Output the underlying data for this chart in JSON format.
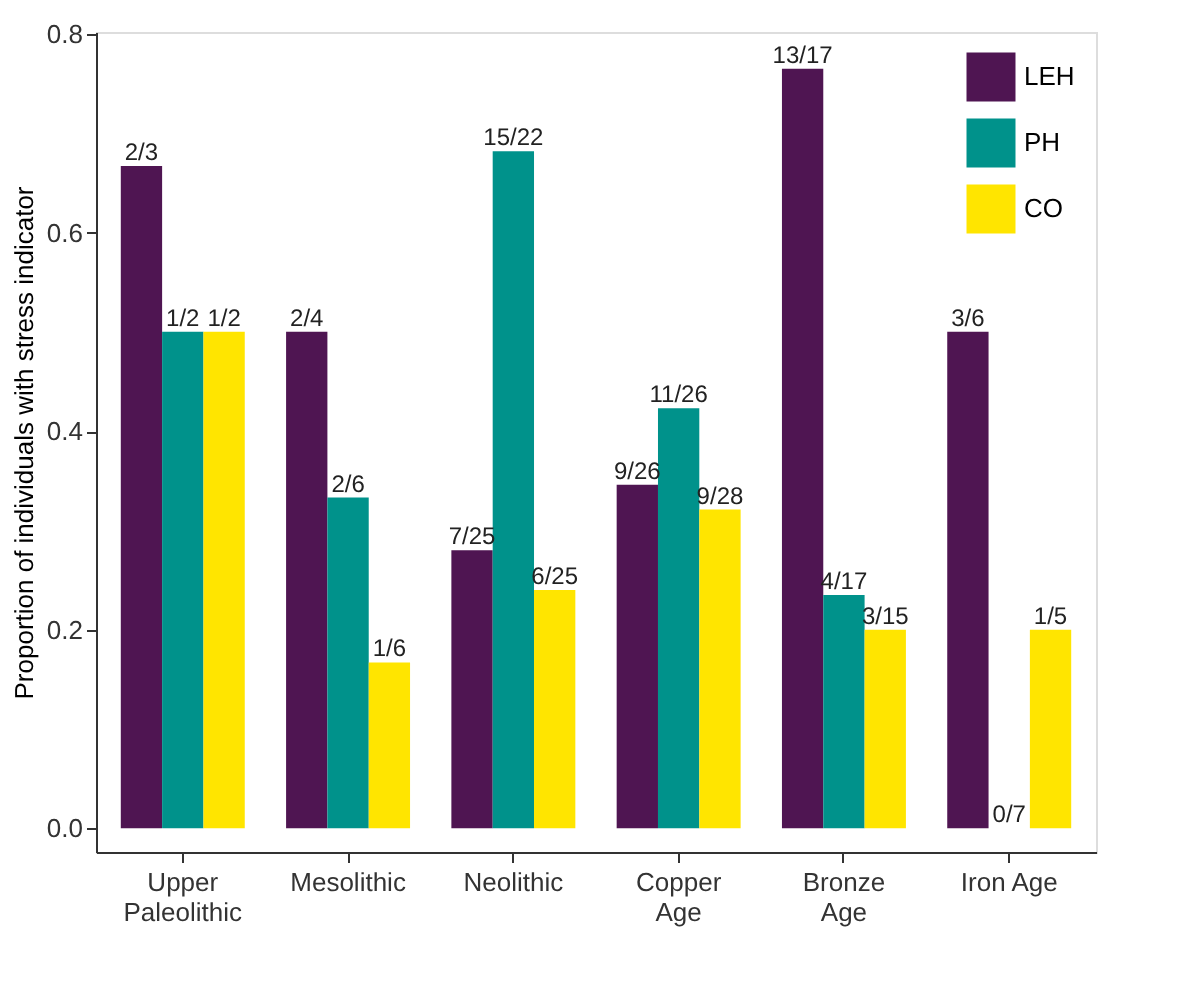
{
  "chart_data": {
    "type": "bar",
    "ylabel": "Proportion of individuals with stress indicator",
    "categories": [
      "Upper\nPaleolithic",
      "Mesolithic",
      "Neolithic",
      "Copper\nAge",
      "Bronze\nAge",
      "Iron Age"
    ],
    "series": [
      {
        "name": "LEH",
        "color": "#4f1552",
        "values": [
          0.667,
          0.5,
          0.28,
          0.346,
          0.765,
          0.5
        ],
        "value_labels": [
          "2/3",
          "2/4",
          "7/25",
          "9/26",
          "13/17",
          "3/6"
        ]
      },
      {
        "name": "PH",
        "color": "#00928b",
        "values": [
          0.5,
          0.333,
          0.682,
          0.423,
          0.235,
          0.0
        ],
        "value_labels": [
          "1/2",
          "2/6",
          "15/22",
          "11/26",
          "4/17",
          "0/7"
        ]
      },
      {
        "name": "CO",
        "color": "#ffe500",
        "values": [
          0.5,
          0.167,
          0.24,
          0.321,
          0.2,
          0.2
        ],
        "value_labels": [
          "1/2",
          "1/6",
          "6/25",
          "9/28",
          "3/15",
          "1/5"
        ]
      }
    ],
    "ylim": [
      -0.024,
      0.802
    ],
    "yticks": [
      {
        "value": 0,
        "label": "0.0"
      },
      {
        "value": 0.2,
        "label": "0.2"
      },
      {
        "value": 0.4,
        "label": "0.4"
      },
      {
        "value": 0.6,
        "label": "0.6"
      },
      {
        "value": 0.8,
        "label": "0.8"
      }
    ],
    "legend": "top right",
    "grid": false
  }
}
